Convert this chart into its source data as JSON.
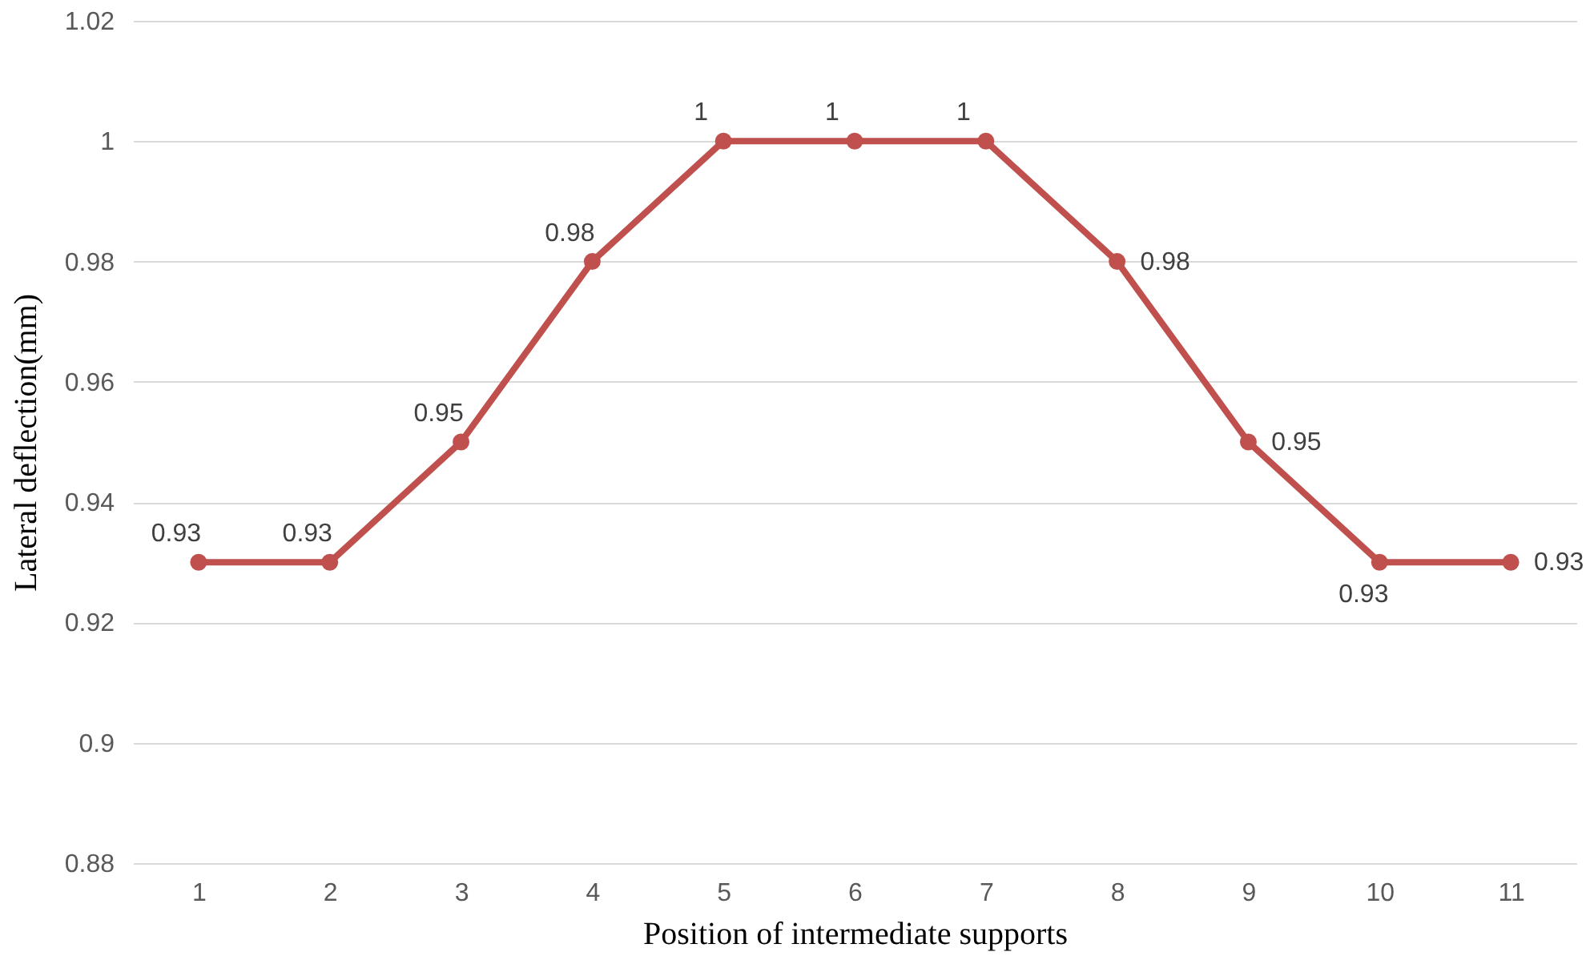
{
  "chart_data": {
    "type": "line",
    "xlabel": "Position of intermediate supports",
    "ylabel": "Lateral deflection(mm)",
    "categories": [
      "1",
      "2",
      "3",
      "4",
      "5",
      "6",
      "7",
      "8",
      "9",
      "10",
      "11"
    ],
    "series": [
      {
        "color": "#c0504d",
        "values": [
          0.93,
          0.93,
          0.95,
          0.98,
          1,
          1,
          1,
          0.98,
          0.95,
          0.93,
          0.93
        ]
      }
    ],
    "ylim": [
      0.88,
      1.02
    ],
    "yticks": [
      0.88,
      0.9,
      0.92,
      0.94,
      0.96,
      0.98,
      1,
      1.02
    ],
    "grid": "y",
    "marker": "circle",
    "line_style": "solid",
    "data_labels": true
  }
}
